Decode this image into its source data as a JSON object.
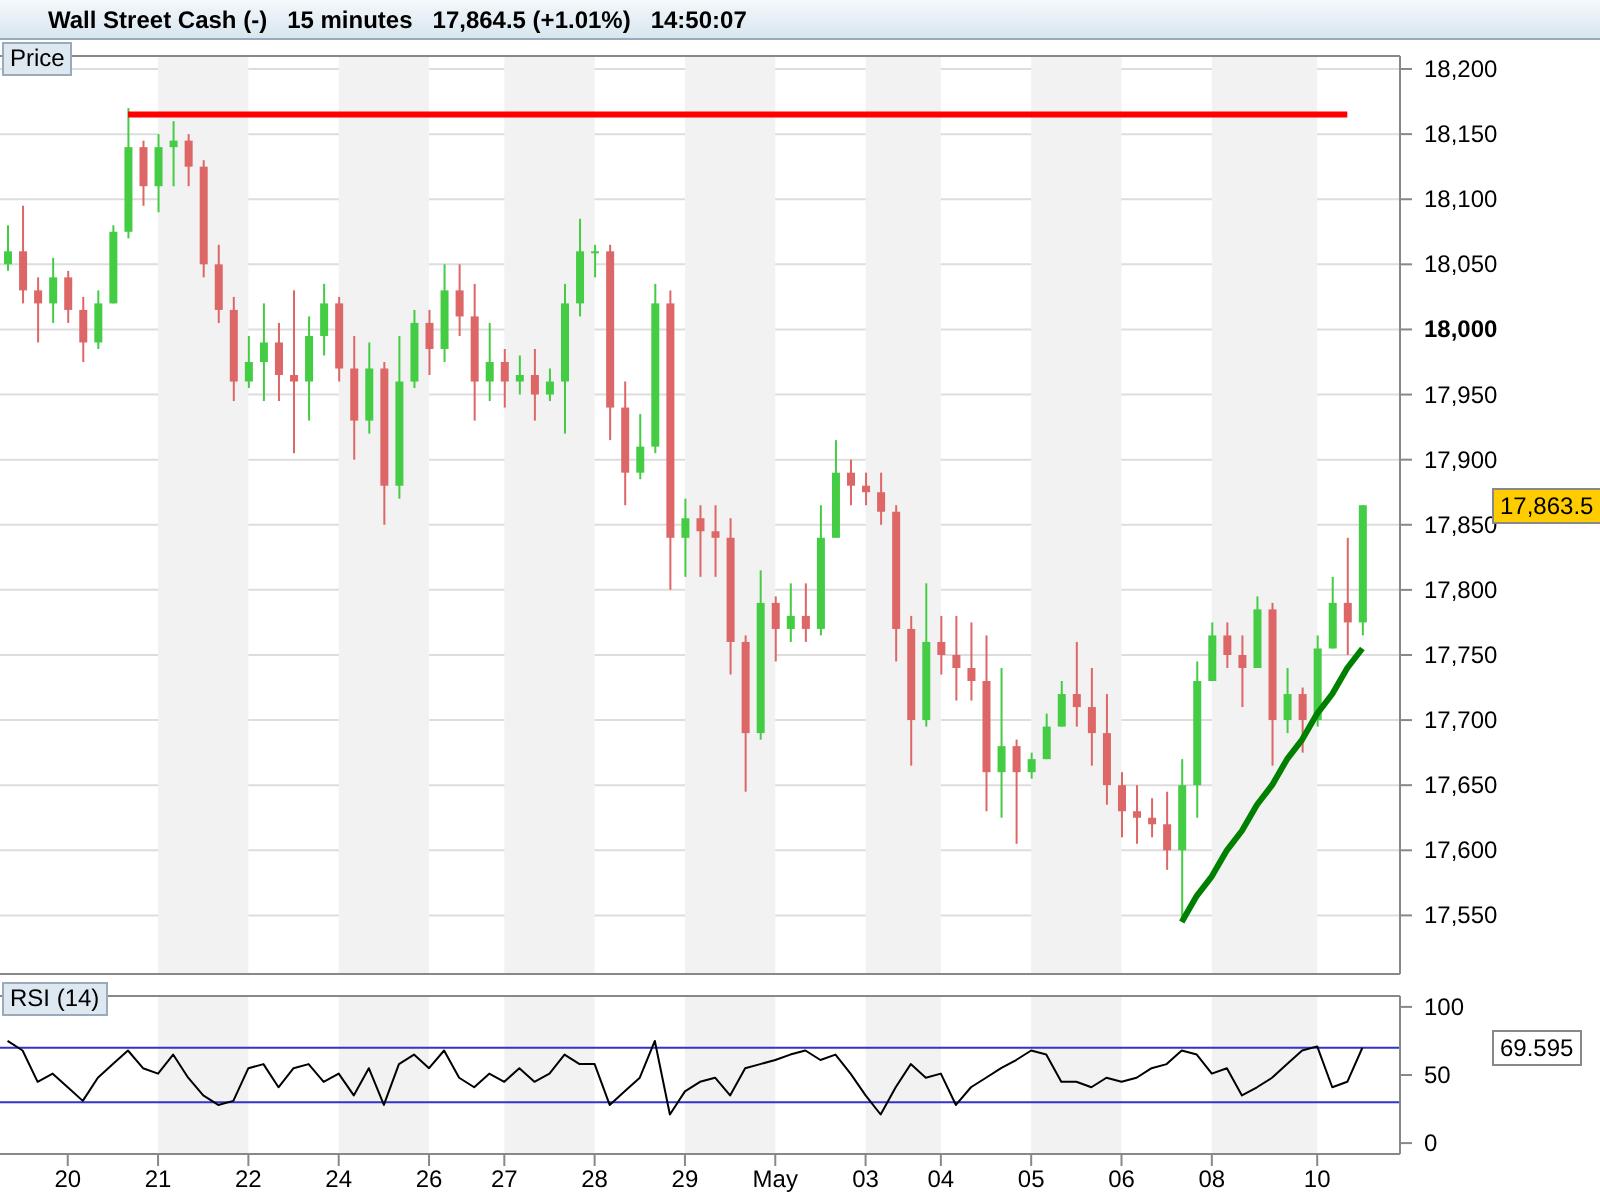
{
  "chart_data": [
    {
      "type": "candlestick",
      "title": "Wall Street Cash (-)   15 minutes   17,864.5 (+1.01%)   14:50:07",
      "subtitle": "Price",
      "categories": [
        null,
        null,
        null,
        null,
        "20",
        null,
        null,
        null,
        null,
        null,
        "21",
        null,
        null,
        null,
        null,
        null,
        "22",
        null,
        null,
        null,
        null,
        null,
        "24",
        null,
        null,
        null,
        null,
        null,
        "26",
        null,
        null,
        null,
        null,
        "27",
        null,
        null,
        null,
        null,
        null,
        "28",
        null,
        null,
        null,
        null,
        null,
        "29",
        null,
        null,
        null,
        null,
        null,
        "May",
        null,
        null,
        null,
        null,
        null,
        "03",
        null,
        null,
        null,
        null,
        "04",
        null,
        null,
        null,
        null,
        null,
        "05",
        null,
        null,
        null,
        null,
        null,
        "06",
        null,
        null,
        null,
        null,
        null,
        "08",
        null,
        null,
        null,
        null,
        null,
        null,
        "10",
        null,
        null,
        null
      ],
      "ohlc": [
        [
          18050,
          18080,
          18045,
          18060
        ],
        [
          18060,
          18095,
          18020,
          18030
        ],
        [
          18030,
          18040,
          17990,
          18020
        ],
        [
          18020,
          18055,
          18005,
          18040
        ],
        [
          18040,
          18045,
          18005,
          18015
        ],
        [
          18015,
          18025,
          17975,
          17990
        ],
        [
          17990,
          18030,
          17985,
          18020
        ],
        [
          18020,
          18080,
          18020,
          18075
        ],
        [
          18075,
          18170,
          18070,
          18140
        ],
        [
          18140,
          18145,
          18095,
          18110
        ],
        [
          18110,
          18150,
          18090,
          18140
        ],
        [
          18140,
          18160,
          18110,
          18145
        ],
        [
          18145,
          18150,
          18110,
          18125
        ],
        [
          18125,
          18130,
          18040,
          18050
        ],
        [
          18050,
          18065,
          18005,
          18015
        ],
        [
          18015,
          18025,
          17945,
          17960
        ],
        [
          17960,
          17995,
          17955,
          17975
        ],
        [
          17975,
          18020,
          17945,
          17990
        ],
        [
          17990,
          18005,
          17945,
          17965
        ],
        [
          17965,
          18030,
          17905,
          17960
        ],
        [
          17960,
          18010,
          17930,
          17995
        ],
        [
          17995,
          18035,
          17980,
          18020
        ],
        [
          18020,
          18025,
          17960,
          17970
        ],
        [
          17970,
          17995,
          17900,
          17930
        ],
        [
          17930,
          17990,
          17920,
          17970
        ],
        [
          17970,
          17975,
          17850,
          17880
        ],
        [
          17880,
          17995,
          17870,
          17960
        ],
        [
          17960,
          18015,
          17955,
          18005
        ],
        [
          18005,
          18015,
          17965,
          17985
        ],
        [
          17985,
          18050,
          17975,
          18030
        ],
        [
          18030,
          18050,
          17995,
          18010
        ],
        [
          18010,
          18035,
          17930,
          17960
        ],
        [
          17960,
          18005,
          17945,
          17975
        ],
        [
          17975,
          17985,
          17940,
          17960
        ],
        [
          17960,
          17980,
          17950,
          17965
        ],
        [
          17965,
          17985,
          17930,
          17950
        ],
        [
          17950,
          17970,
          17945,
          17960
        ],
        [
          17960,
          18035,
          17920,
          18020
        ],
        [
          18020,
          18085,
          18010,
          18060
        ],
        [
          18060,
          18065,
          18040,
          18060
        ],
        [
          18060,
          18065,
          17915,
          17940
        ],
        [
          17940,
          17960,
          17865,
          17890
        ],
        [
          17890,
          17935,
          17885,
          17910
        ],
        [
          17910,
          18035,
          17905,
          18020
        ],
        [
          18020,
          18030,
          17800,
          17840
        ],
        [
          17840,
          17870,
          17810,
          17855
        ],
        [
          17855,
          17865,
          17810,
          17845
        ],
        [
          17845,
          17865,
          17810,
          17840
        ],
        [
          17840,
          17855,
          17735,
          17760
        ],
        [
          17760,
          17765,
          17645,
          17690
        ],
        [
          17690,
          17815,
          17685,
          17790
        ],
        [
          17790,
          17795,
          17745,
          17770
        ],
        [
          17770,
          17805,
          17760,
          17780
        ],
        [
          17780,
          17805,
          17760,
          17770
        ],
        [
          17770,
          17865,
          17765,
          17840
        ],
        [
          17840,
          17915,
          17840,
          17890
        ],
        [
          17890,
          17900,
          17865,
          17880
        ],
        [
          17880,
          17890,
          17865,
          17875
        ],
        [
          17875,
          17890,
          17850,
          17860
        ],
        [
          17860,
          17865,
          17745,
          17770
        ],
        [
          17770,
          17780,
          17665,
          17700
        ],
        [
          17700,
          17805,
          17695,
          17760
        ],
        [
          17760,
          17780,
          17735,
          17750
        ],
        [
          17750,
          17780,
          17715,
          17740
        ],
        [
          17740,
          17775,
          17715,
          17730
        ],
        [
          17730,
          17765,
          17630,
          17660
        ],
        [
          17660,
          17740,
          17625,
          17680
        ],
        [
          17680,
          17685,
          17605,
          17660
        ],
        [
          17660,
          17675,
          17655,
          17670
        ],
        [
          17670,
          17705,
          17670,
          17695
        ],
        [
          17695,
          17730,
          17695,
          17720
        ],
        [
          17720,
          17760,
          17695,
          17710
        ],
        [
          17710,
          17740,
          17665,
          17690
        ],
        [
          17690,
          17720,
          17635,
          17650
        ],
        [
          17650,
          17660,
          17610,
          17630
        ],
        [
          17630,
          17650,
          17605,
          17625
        ],
        [
          17625,
          17640,
          17610,
          17620
        ],
        [
          17620,
          17645,
          17585,
          17600
        ],
        [
          17600,
          17670,
          17545,
          17650
        ],
        [
          17650,
          17745,
          17625,
          17730
        ],
        [
          17730,
          17775,
          17730,
          17765
        ],
        [
          17765,
          17775,
          17740,
          17750
        ],
        [
          17750,
          17765,
          17710,
          17740
        ],
        [
          17740,
          17795,
          17740,
          17785
        ],
        [
          17785,
          17790,
          17665,
          17700
        ],
        [
          17700,
          17740,
          17690,
          17720
        ],
        [
          17720,
          17725,
          17675,
          17700
        ],
        [
          17700,
          17765,
          17695,
          17755
        ],
        [
          17755,
          17810,
          17755,
          17790
        ],
        [
          17790,
          17840,
          17750,
          17775
        ],
        [
          17775,
          17865,
          17765,
          17865
        ]
      ],
      "series": [
        {
          "type": "line",
          "color": "#ff0000",
          "values": [
            null,
            null,
            null,
            null,
            null,
            null,
            null,
            null,
            18165,
            18165,
            18165,
            18165,
            18165,
            18165,
            18165,
            18165,
            18165,
            18165,
            18165,
            18165,
            18165,
            18165,
            18165,
            18165,
            18165,
            18165,
            18165,
            18165,
            18165,
            18165,
            18165,
            18165,
            18165,
            18165,
            18165,
            18165,
            18165,
            18165,
            18165,
            18165,
            18165,
            18165,
            18165,
            18165,
            18165,
            18165,
            18165,
            18165,
            18165,
            18165,
            18165,
            18165,
            18165,
            18165,
            18165,
            18165,
            18165,
            18165,
            18165,
            18165,
            18165,
            18165,
            18165,
            18165,
            18165,
            18165,
            18165,
            18165,
            18165,
            18165,
            18165,
            18165,
            18165,
            18165,
            18165,
            18165,
            18165,
            18165,
            18165,
            18165,
            18165,
            18165,
            18165,
            18165,
            18165,
            18165,
            18165,
            18165,
            18165,
            18165,
            null
          ]
        },
        {
          "type": "line",
          "color": "#008000",
          "values": [
            null,
            null,
            null,
            null,
            null,
            null,
            null,
            null,
            null,
            null,
            null,
            null,
            null,
            null,
            null,
            null,
            null,
            null,
            null,
            null,
            null,
            null,
            null,
            null,
            null,
            null,
            null,
            null,
            null,
            null,
            null,
            null,
            null,
            null,
            null,
            null,
            null,
            null,
            null,
            null,
            null,
            null,
            null,
            null,
            null,
            null,
            null,
            null,
            null,
            null,
            null,
            null,
            null,
            null,
            null,
            null,
            null,
            null,
            null,
            null,
            null,
            null,
            null,
            null,
            null,
            null,
            null,
            null,
            null,
            null,
            null,
            null,
            null,
            null,
            null,
            null,
            null,
            null,
            17545,
            17565,
            17580,
            17600,
            17615,
            17635,
            17650,
            17670,
            17685,
            17705,
            17720,
            17740,
            17755
          ]
        }
      ],
      "marker": "none",
      "grid": "y",
      "tick_labels": "y",
      "ylim": [
        17505,
        18210
      ],
      "yticks": [
        {
          "value": 17550,
          "label": "17,550"
        },
        {
          "value": 17600,
          "label": "17,600"
        },
        {
          "value": 17650,
          "label": "17,650"
        },
        {
          "value": 17700,
          "label": "17,700"
        },
        {
          "value": 17750,
          "label": "17,750"
        },
        {
          "value": 17800,
          "label": "17,800"
        },
        {
          "value": 17850,
          "label": "17,850"
        },
        {
          "value": 17900,
          "label": "17,900"
        },
        {
          "value": 17950,
          "label": "17,950"
        },
        {
          "value": 18000,
          "label": "18,000"
        },
        {
          "value": 18050,
          "label": "18,050"
        },
        {
          "value": 18100,
          "label": "18,100"
        },
        {
          "value": 18150,
          "label": "18,150"
        },
        {
          "value": 18200,
          "label": "18,200"
        }
      ],
      "bands": [
        {
          "axis": "x",
          "from": "21",
          "to": "22",
          "color": "#f2f2f2"
        },
        {
          "axis": "x",
          "from": "24",
          "to": "26",
          "color": "#f2f2f2"
        },
        {
          "axis": "x",
          "from": "27",
          "to": "28",
          "color": "#f2f2f2"
        },
        {
          "axis": "x",
          "from": "29",
          "to": "May",
          "color": "#f2f2f2"
        },
        {
          "axis": "x",
          "from": "03",
          "to": "04",
          "color": "#f2f2f2"
        },
        {
          "axis": "x",
          "from": "05",
          "to": "06",
          "color": "#f2f2f2"
        },
        {
          "axis": "x",
          "from": "08",
          "to": "10",
          "color": "#f2f2f2"
        }
      ],
      "annotations": [
        "17,863.5"
      ]
    },
    {
      "type": "line",
      "title": "RSI (14)",
      "categories": [
        null,
        null,
        null,
        null,
        "20",
        null,
        null,
        null,
        null,
        null,
        "21",
        null,
        null,
        null,
        null,
        null,
        "22",
        null,
        null,
        null,
        null,
        null,
        "24",
        null,
        null,
        null,
        null,
        null,
        "26",
        null,
        null,
        null,
        null,
        "27",
        null,
        null,
        null,
        null,
        null,
        "28",
        null,
        null,
        null,
        null,
        null,
        "29",
        null,
        null,
        null,
        null,
        null,
        "May",
        null,
        null,
        null,
        null,
        null,
        "03",
        null,
        null,
        null,
        null,
        "04",
        null,
        null,
        null,
        null,
        null,
        "05",
        null,
        null,
        null,
        null,
        null,
        "06",
        null,
        null,
        null,
        null,
        null,
        "08",
        null,
        null,
        null,
        null,
        null,
        null,
        "10",
        null,
        null,
        null
      ],
      "series": [
        {
          "color": "#000000",
          "values": [
            75,
            68,
            45,
            51,
            41,
            31,
            48,
            58,
            68,
            55,
            51,
            65,
            48,
            35,
            28,
            31,
            55,
            58,
            41,
            55,
            58,
            45,
            51,
            35,
            55,
            28,
            58,
            65,
            55,
            68,
            48,
            41,
            51,
            45,
            55,
            45,
            51,
            65,
            58,
            58,
            28,
            38,
            48,
            75,
            21,
            38,
            45,
            48,
            35,
            55,
            58,
            61,
            65,
            68,
            61,
            65,
            51,
            35,
            21,
            41,
            58,
            48,
            51,
            28,
            41,
            48,
            55,
            61,
            68,
            65,
            45,
            45,
            41,
            48,
            45,
            48,
            55,
            58,
            68,
            65,
            51,
            55,
            35,
            41,
            48,
            58,
            68,
            71,
            41,
            45,
            70
          ]
        }
      ],
      "marker": "none",
      "ylim": [
        -8,
        108
      ],
      "yticks": [
        0,
        50,
        100
      ],
      "ref_lines": [
        {
          "axis": "y",
          "value": 70,
          "color": "#3333cc"
        },
        {
          "axis": "y",
          "value": 30,
          "color": "#3333cc"
        }
      ],
      "bands": [
        {
          "axis": "x",
          "from": "21",
          "to": "22",
          "color": "#f2f2f2"
        },
        {
          "axis": "x",
          "from": "24",
          "to": "26",
          "color": "#f2f2f2"
        },
        {
          "axis": "x",
          "from": "27",
          "to": "28",
          "color": "#f2f2f2"
        },
        {
          "axis": "x",
          "from": "29",
          "to": "May",
          "color": "#f2f2f2"
        },
        {
          "axis": "x",
          "from": "03",
          "to": "04",
          "color": "#f2f2f2"
        },
        {
          "axis": "x",
          "from": "05",
          "to": "06",
          "color": "#f2f2f2"
        },
        {
          "axis": "x",
          "from": "08",
          "to": "10",
          "color": "#f2f2f2"
        }
      ],
      "annotations": [
        "69.595"
      ]
    }
  ]
}
